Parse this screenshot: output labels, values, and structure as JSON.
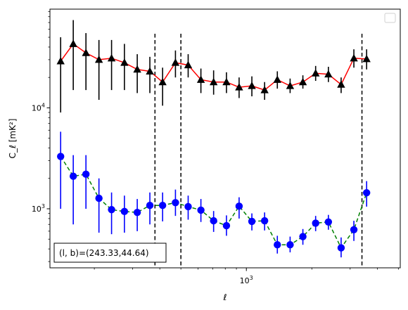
{
  "chart_data": {
    "type": "scatter",
    "title": "",
    "xlabel": "ℓ",
    "ylabel": "C_ℓ [mK²]",
    "xscale": "log",
    "yscale": "log",
    "xlim": [
      125,
      5100
    ],
    "ylim": [
      260,
      95000
    ],
    "x_tick_labels": [
      {
        "value": 1000,
        "base": "10",
        "exp": "3"
      }
    ],
    "y_tick_labels": [
      {
        "value": 1000,
        "base": "10",
        "exp": "3"
      },
      {
        "value": 10000,
        "base": "10",
        "exp": "4"
      }
    ],
    "vlines": [
      380,
      500,
      3400
    ],
    "legend": {
      "placement": "upper-right",
      "entries": []
    },
    "annotation": "(l, b)=(243.33,44.64)",
    "series": [
      {
        "marker": "triangle",
        "color": "#000000",
        "line_color": "#ff0000",
        "line_style": "solid",
        "points": [
          {
            "x": 140,
            "y": 29000,
            "lo": 9000,
            "hi": 50000
          },
          {
            "x": 160,
            "y": 43000,
            "lo": 15000,
            "hi": 74000
          },
          {
            "x": 183,
            "y": 35000,
            "lo": 15000,
            "hi": 55000
          },
          {
            "x": 210,
            "y": 30000,
            "lo": 12000,
            "hi": 47000
          },
          {
            "x": 240,
            "y": 31000,
            "lo": 15000,
            "hi": 47000
          },
          {
            "x": 275,
            "y": 28000,
            "lo": 15000,
            "hi": 43000
          },
          {
            "x": 315,
            "y": 24000,
            "lo": 14000,
            "hi": 34000
          },
          {
            "x": 360,
            "y": 23000,
            "lo": 14000,
            "hi": 32000
          },
          {
            "x": 412,
            "y": 18000,
            "lo": 10500,
            "hi": 25000
          },
          {
            "x": 472,
            "y": 28000,
            "lo": 20000,
            "hi": 37000
          },
          {
            "x": 540,
            "y": 26500,
            "lo": 20000,
            "hi": 34000
          },
          {
            "x": 618,
            "y": 19000,
            "lo": 14000,
            "hi": 24500
          },
          {
            "x": 707,
            "y": 18000,
            "lo": 13500,
            "hi": 23500
          },
          {
            "x": 810,
            "y": 18000,
            "lo": 14000,
            "hi": 22500
          },
          {
            "x": 926,
            "y": 16000,
            "lo": 12500,
            "hi": 20000
          },
          {
            "x": 1060,
            "y": 16500,
            "lo": 13000,
            "hi": 20500
          },
          {
            "x": 1213,
            "y": 15000,
            "lo": 12000,
            "hi": 18000
          },
          {
            "x": 1388,
            "y": 19000,
            "lo": 15500,
            "hi": 23000
          },
          {
            "x": 1589,
            "y": 16500,
            "lo": 14000,
            "hi": 19500
          },
          {
            "x": 1819,
            "y": 18000,
            "lo": 15500,
            "hi": 21000
          },
          {
            "x": 2082,
            "y": 22000,
            "lo": 18500,
            "hi": 26000
          },
          {
            "x": 2383,
            "y": 21500,
            "lo": 18000,
            "hi": 25500
          },
          {
            "x": 2727,
            "y": 17000,
            "lo": 14000,
            "hi": 20000
          },
          {
            "x": 3121,
            "y": 31000,
            "lo": 25000,
            "hi": 38000
          },
          {
            "x": 3572,
            "y": 30500,
            "lo": 24000,
            "hi": 38000
          }
        ]
      },
      {
        "marker": "circle",
        "color": "#0000ff",
        "line_color": "#008000",
        "line_style": "dashed",
        "points": [
          {
            "x": 140,
            "y": 3300,
            "lo": 1000,
            "hi": 5800
          },
          {
            "x": 160,
            "y": 2100,
            "lo": 700,
            "hi": 3400
          },
          {
            "x": 183,
            "y": 2200,
            "lo": 1000,
            "hi": 3400
          },
          {
            "x": 210,
            "y": 1270,
            "lo": 580,
            "hi": 2000
          },
          {
            "x": 240,
            "y": 980,
            "lo": 560,
            "hi": 1450
          },
          {
            "x": 275,
            "y": 940,
            "lo": 580,
            "hi": 1350
          },
          {
            "x": 315,
            "y": 920,
            "lo": 600,
            "hi": 1250
          },
          {
            "x": 360,
            "y": 1080,
            "lo": 700,
            "hi": 1450
          },
          {
            "x": 412,
            "y": 1080,
            "lo": 750,
            "hi": 1450
          },
          {
            "x": 472,
            "y": 1150,
            "lo": 850,
            "hi": 1550
          },
          {
            "x": 540,
            "y": 1050,
            "lo": 780,
            "hi": 1350
          },
          {
            "x": 618,
            "y": 970,
            "lo": 740,
            "hi": 1250
          },
          {
            "x": 707,
            "y": 760,
            "lo": 590,
            "hi": 950
          },
          {
            "x": 810,
            "y": 680,
            "lo": 540,
            "hi": 860
          },
          {
            "x": 926,
            "y": 1060,
            "lo": 800,
            "hi": 1300
          },
          {
            "x": 1060,
            "y": 750,
            "lo": 610,
            "hi": 900
          },
          {
            "x": 1213,
            "y": 760,
            "lo": 610,
            "hi": 920
          },
          {
            "x": 1388,
            "y": 440,
            "lo": 360,
            "hi": 540
          },
          {
            "x": 1589,
            "y": 440,
            "lo": 370,
            "hi": 530
          },
          {
            "x": 1819,
            "y": 530,
            "lo": 440,
            "hi": 630
          },
          {
            "x": 2082,
            "y": 720,
            "lo": 600,
            "hi": 850
          },
          {
            "x": 2383,
            "y": 740,
            "lo": 620,
            "hi": 870
          },
          {
            "x": 2727,
            "y": 410,
            "lo": 330,
            "hi": 520
          },
          {
            "x": 3121,
            "y": 620,
            "lo": 480,
            "hi": 760
          },
          {
            "x": 3572,
            "y": 1440,
            "lo": 1050,
            "hi": 1880
          }
        ]
      }
    ]
  }
}
